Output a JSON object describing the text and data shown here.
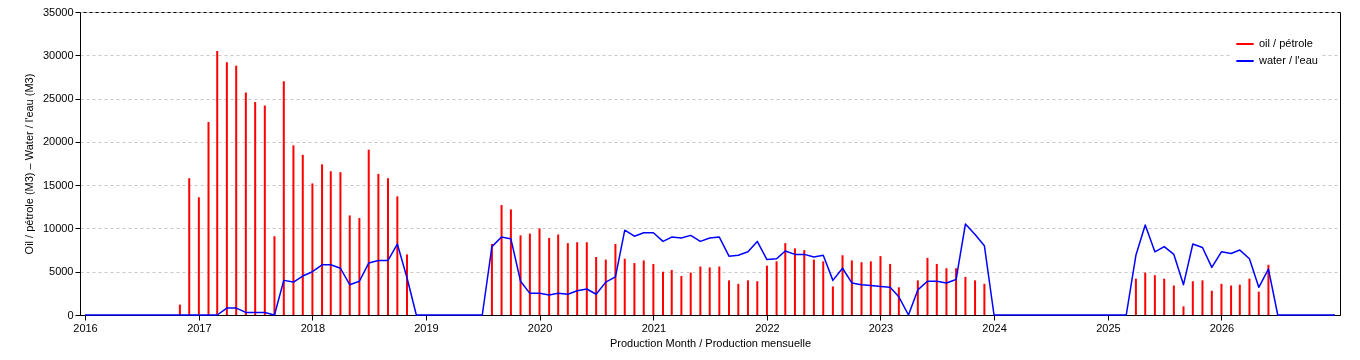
{
  "chart_data": {
    "type": "bar",
    "xlabel": "Production Month / Production mensuelle",
    "ylabel": "Oil / pétrole (M3)  –  Water / l'eau (M3)",
    "x": [
      "2016-01",
      "2016-02",
      "2016-03",
      "2016-04",
      "2016-05",
      "2016-06",
      "2016-07",
      "2016-08",
      "2016-09",
      "2016-10",
      "2016-11",
      "2016-12",
      "2017-01",
      "2017-02",
      "2017-03",
      "2017-04",
      "2017-05",
      "2017-06",
      "2017-07",
      "2017-08",
      "2017-09",
      "2017-10",
      "2017-11",
      "2017-12",
      "2018-01",
      "2018-02",
      "2018-03",
      "2018-04",
      "2018-05",
      "2018-06",
      "2018-07",
      "2018-08",
      "2018-09",
      "2018-10",
      "2018-11",
      "2018-12",
      "2019-01",
      "2019-02",
      "2019-03",
      "2019-04",
      "2019-05",
      "2019-06",
      "2019-07",
      "2019-08",
      "2019-09",
      "2019-10",
      "2019-11",
      "2019-12",
      "2020-01",
      "2020-02",
      "2020-03",
      "2020-04",
      "2020-05",
      "2020-06",
      "2020-07",
      "2020-08",
      "2020-09",
      "2020-10",
      "2020-11",
      "2020-12",
      "2021-01",
      "2021-02",
      "2021-03",
      "2021-04",
      "2021-05",
      "2021-06",
      "2021-07",
      "2021-08",
      "2021-09",
      "2021-10",
      "2021-11",
      "2021-12",
      "2022-01",
      "2022-02",
      "2022-03",
      "2022-04",
      "2022-05",
      "2022-06",
      "2022-07",
      "2022-08",
      "2022-09",
      "2022-10",
      "2022-11",
      "2022-12",
      "2023-01",
      "2023-02",
      "2023-03",
      "2023-04",
      "2023-05",
      "2023-06",
      "2023-07",
      "2023-08",
      "2023-09",
      "2023-10",
      "2023-11",
      "2023-12",
      "2024-01",
      "2024-02",
      "2024-03",
      "2024-04",
      "2024-05",
      "2024-06",
      "2024-07",
      "2024-08",
      "2024-09",
      "2024-10",
      "2024-11",
      "2024-12",
      "2025-01",
      "2025-02",
      "2025-03",
      "2025-04",
      "2025-05",
      "2025-06",
      "2025-07",
      "2025-08",
      "2025-09",
      "2025-10",
      "2025-11",
      "2025-12",
      "2026-01",
      "2026-02",
      "2026-03",
      "2026-04",
      "2026-05",
      "2026-06",
      "2026-07",
      "2026-08",
      "2026-09",
      "2026-10",
      "2026-11",
      "2026-12",
      "2027-01"
    ],
    "series": [
      {
        "name": "oil / pétrole",
        "color": "#ff0000",
        "values": [
          null,
          null,
          null,
          null,
          null,
          null,
          null,
          null,
          null,
          null,
          1200,
          15800,
          13600,
          22300,
          30500,
          29200,
          28800,
          25700,
          24600,
          24200,
          9100,
          27000,
          19600,
          18500,
          15200,
          17400,
          16600,
          16500,
          11500,
          11200,
          19100,
          16300,
          15800,
          13700,
          7000,
          null,
          null,
          null,
          null,
          null,
          null,
          null,
          null,
          8200,
          12700,
          12200,
          9200,
          9400,
          10000,
          8900,
          9300,
          8300,
          8400,
          8400,
          6700,
          6400,
          8200,
          6500,
          6000,
          6300,
          5900,
          5000,
          5200,
          4500,
          4900,
          5600,
          5500,
          5600,
          4000,
          3600,
          4000,
          3900,
          5700,
          6200,
          8300,
          7700,
          7500,
          6400,
          6200,
          3300,
          6900,
          6300,
          6100,
          6200,
          6800,
          5900,
          3200,
          null,
          4000,
          6600,
          5900,
          5400,
          5400,
          4400,
          4000,
          3600,
          null,
          null,
          null,
          null,
          null,
          null,
          null,
          null,
          null,
          null,
          null,
          null,
          null,
          null,
          null,
          4200,
          4900,
          4600,
          4200,
          3400,
          1000,
          3900,
          4000,
          2800,
          3600,
          3400,
          3500,
          4200,
          2700,
          5800,
          null,
          null,
          null,
          null,
          null,
          null,
          null
        ]
      },
      {
        "name": "water / l'eau",
        "color": "#0000ff",
        "type": "line",
        "values": [
          0,
          0,
          0,
          0,
          0,
          0,
          0,
          0,
          0,
          0,
          0,
          0,
          0,
          0,
          0,
          800,
          800,
          300,
          300,
          300,
          0,
          4000,
          3800,
          4500,
          5000,
          5800,
          5800,
          5400,
          3500,
          3900,
          6000,
          6300,
          6300,
          8200,
          4300,
          0,
          0,
          0,
          0,
          0,
          0,
          0,
          0,
          7900,
          9000,
          8800,
          3900,
          2500,
          2500,
          2300,
          2500,
          2400,
          2800,
          3000,
          2400,
          3800,
          4400,
          9800,
          9100,
          9500,
          9500,
          8500,
          9000,
          8900,
          9200,
          8500,
          8900,
          9000,
          6800,
          6900,
          7300,
          8500,
          6400,
          6500,
          7400,
          7000,
          7000,
          6700,
          6900,
          4000,
          5400,
          3700,
          3500,
          3400,
          3300,
          3200,
          2100,
          0,
          2900,
          3900,
          3900,
          3700,
          4100,
          10500,
          9300,
          8000,
          0,
          0,
          0,
          0,
          0,
          0,
          0,
          0,
          0,
          0,
          0,
          0,
          0,
          0,
          0,
          6900,
          10400,
          7300,
          7900,
          7000,
          3500,
          8200,
          7800,
          5500,
          7300,
          7100,
          7500,
          6500,
          3200,
          5300,
          0,
          0,
          0,
          0,
          0,
          0,
          0
        ]
      }
    ],
    "xlim": [
      "2016-01",
      "2027-01"
    ],
    "xticks": [
      "2016",
      "2017",
      "2018",
      "2019",
      "2020",
      "2021",
      "2022",
      "2023",
      "2024",
      "2025",
      "2026"
    ],
    "ylim": [
      0,
      35000
    ],
    "yticks": [
      0,
      5000,
      10000,
      15000,
      20000,
      25000,
      30000,
      35000
    ],
    "grid": "y",
    "legend": "top right"
  }
}
